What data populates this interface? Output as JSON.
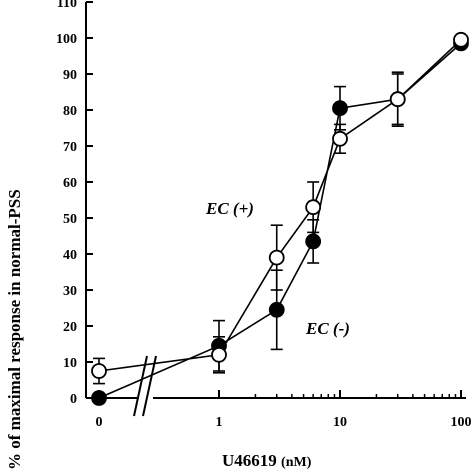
{
  "chart_data": {
    "type": "line",
    "xlabel": "U46619",
    "xlabel_unit": "(nM)",
    "ylabel": "% of maximal response in normal-PSS",
    "ylim": [
      0,
      110
    ],
    "x_scale": "log with axis break after 0",
    "x_ticks": [
      "0",
      "1",
      "10",
      "100"
    ],
    "y_ticks": [
      "0",
      "10",
      "20",
      "30",
      "40",
      "50",
      "60",
      "70",
      "80",
      "90",
      "100",
      "110"
    ],
    "grid": false,
    "annotations": [
      "EC (+)",
      "EC (-)"
    ],
    "series": [
      {
        "label_ref": "EC (+)",
        "marker": "open-circle",
        "points": [
          {
            "x": 0,
            "y": 7.5,
            "err": 3.5
          },
          {
            "x": 1,
            "y": 12,
            "err": 5
          },
          {
            "x": 3,
            "y": 39,
            "err": 9
          },
          {
            "x": 6,
            "y": 53,
            "err": 7
          },
          {
            "x": 10,
            "y": 72,
            "err": 4
          },
          {
            "x": 30,
            "y": 83,
            "err": 7
          },
          {
            "x": 100,
            "y": 99.5,
            "err": 0
          }
        ]
      },
      {
        "label_ref": "EC (-)",
        "marker": "filled-circle",
        "points": [
          {
            "x": 0,
            "y": 0,
            "err": 0
          },
          {
            "x": 1,
            "y": 14.5,
            "err": 7
          },
          {
            "x": 3,
            "y": 24.5,
            "err": 11
          },
          {
            "x": 6,
            "y": 43.5,
            "err": 6
          },
          {
            "x": 10,
            "y": 80.5,
            "err": 6
          },
          {
            "x": 30,
            "y": 83,
            "err": 7.5
          },
          {
            "x": 100,
            "y": 98.5,
            "err": 0
          }
        ]
      }
    ]
  }
}
